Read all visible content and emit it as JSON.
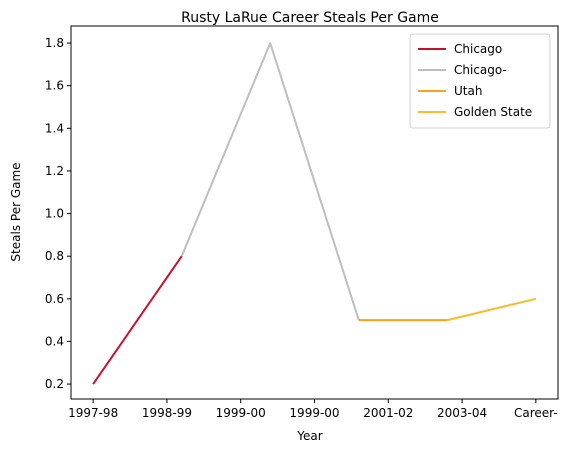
{
  "chart_data": {
    "type": "line",
    "title": "Rusty LaRue Career Steals Per Game",
    "xlabel": "Year",
    "ylabel": "Steals Per Game",
    "categories": [
      "1997-98",
      "1998-99",
      "1999-00",
      "1999-00",
      "2001-02",
      "2003-04",
      "Career-"
    ],
    "ylim": [
      0.13,
      1.88
    ],
    "yticks": [
      0.2,
      0.4,
      0.6,
      0.8,
      1.0,
      1.2,
      1.4,
      1.6,
      1.8
    ],
    "ytick_labels": [
      "0.2",
      "0.4",
      "0.6",
      "0.8",
      "1.0",
      "1.2",
      "1.4",
      "1.6",
      "1.8"
    ],
    "grid": false,
    "legend_position": "top-right",
    "series": [
      {
        "name": "Chicago",
        "color": "#c8102e",
        "x": [
          0,
          1.2
        ],
        "y": [
          0.2,
          0.8
        ]
      },
      {
        "name": "Chicago-",
        "color": "#bebebe",
        "x": [
          1.2,
          2.4,
          3.6
        ],
        "y": [
          0.8,
          1.8,
          0.5
        ]
      },
      {
        "name": "Utah",
        "color": "#f9a01b",
        "x": [
          3.6,
          4.8
        ],
        "y": [
          0.5,
          0.5
        ]
      },
      {
        "name": "Golden State",
        "color": "#fdb927",
        "x": [
          4.8,
          6.0
        ],
        "y": [
          0.5,
          0.6
        ]
      }
    ]
  }
}
